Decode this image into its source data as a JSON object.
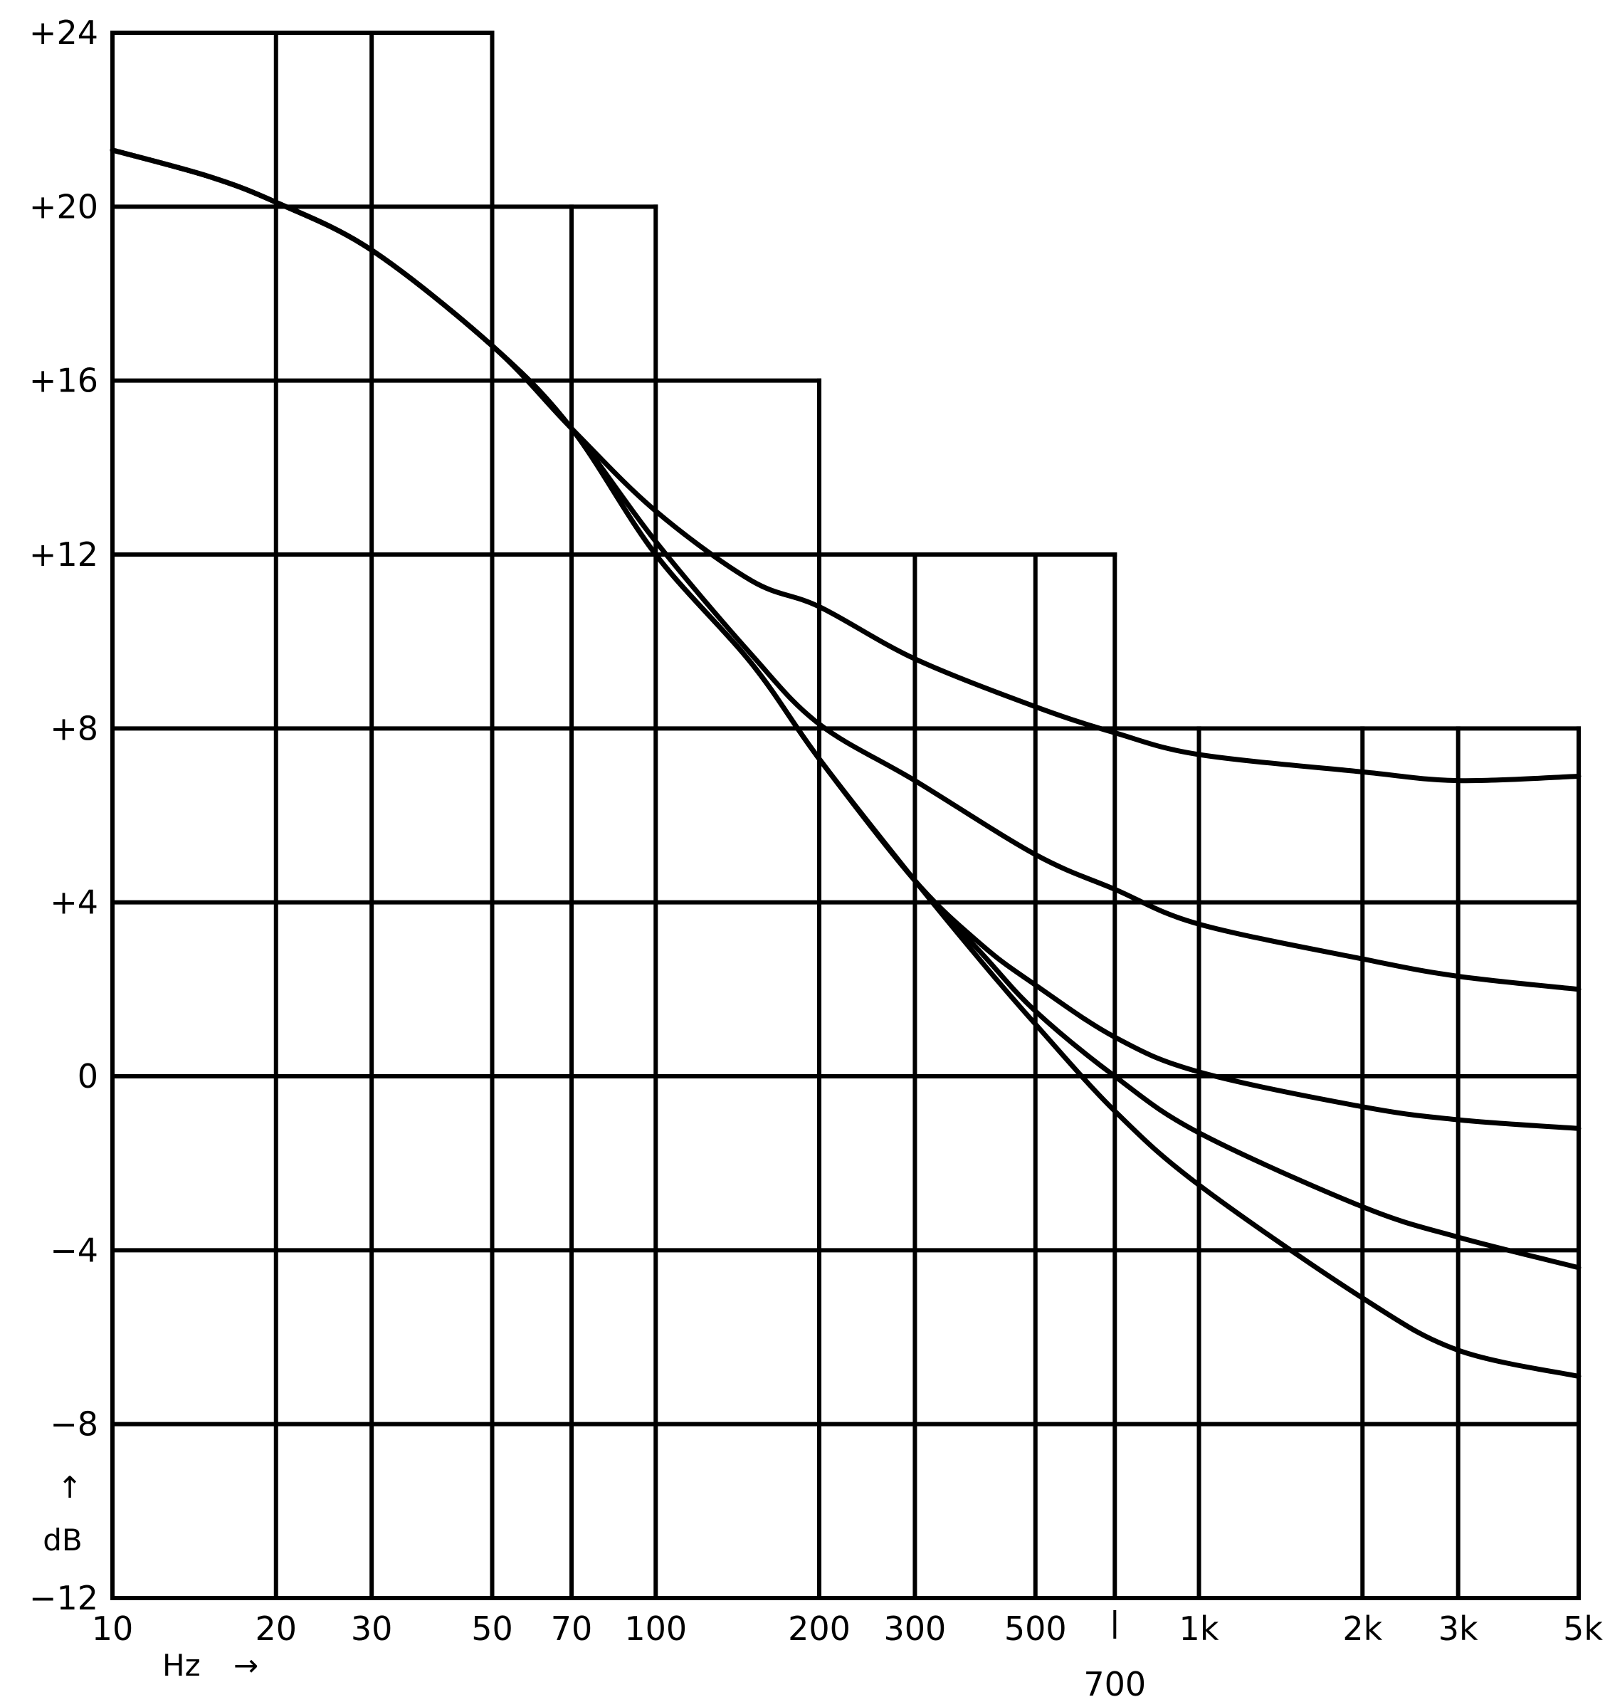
{
  "chart_data": {
    "type": "line",
    "xscale": "log",
    "xlim": [
      10,
      5000
    ],
    "ylim": [
      -12,
      24
    ],
    "xlabel": "Hz",
    "xlabel_arrow": "→",
    "ylabel": "dB",
    "ylabel_arrow": "↑",
    "y_ticks": [
      {
        "value": 24,
        "label": "+24"
      },
      {
        "value": 20,
        "label": "+20"
      },
      {
        "value": 16,
        "label": "+16"
      },
      {
        "value": 12,
        "label": "+12"
      },
      {
        "value": 8,
        "label": "+8"
      },
      {
        "value": 4,
        "label": "+4"
      },
      {
        "value": 0,
        "label": "0"
      },
      {
        "value": -4,
        "label": "−4"
      },
      {
        "value": -8,
        "label": "−8"
      },
      {
        "value": -12,
        "label": "−12"
      }
    ],
    "x_ticks": [
      {
        "value": 10,
        "label": "10"
      },
      {
        "value": 20,
        "label": "20"
      },
      {
        "value": 30,
        "label": "30"
      },
      {
        "value": 50,
        "label": "50"
      },
      {
        "value": 70,
        "label": "70"
      },
      {
        "value": 100,
        "label": "100"
      },
      {
        "value": 200,
        "label": "200"
      },
      {
        "value": 300,
        "label": "300"
      },
      {
        "value": 500,
        "label": "500"
      },
      {
        "value": 700,
        "label": "700"
      },
      {
        "value": 1000,
        "label": "1k"
      },
      {
        "value": 2000,
        "label": "2k"
      },
      {
        "value": 3000,
        "label": "3k"
      },
      {
        "value": 5000,
        "label": "5k"
      }
    ],
    "grid": {
      "verticals": [
        {
          "x": 10,
          "top": 24
        },
        {
          "x": 20,
          "top": 24
        },
        {
          "x": 30,
          "top": 24
        },
        {
          "x": 50,
          "top": 24
        },
        {
          "x": 70,
          "top": 20
        },
        {
          "x": 100,
          "top": 20
        },
        {
          "x": 200,
          "top": 16
        },
        {
          "x": 300,
          "top": 12
        },
        {
          "x": 500,
          "top": 12
        },
        {
          "x": 700,
          "top": 12
        },
        {
          "x": 1000,
          "top": 8
        },
        {
          "x": 2000,
          "top": 8
        },
        {
          "x": 3000,
          "top": 8
        },
        {
          "x": 5000,
          "top": 8
        }
      ],
      "horizontals": [
        {
          "y": 24,
          "right": 50
        },
        {
          "y": 20,
          "right": 100
        },
        {
          "y": 16,
          "right": 200
        },
        {
          "y": 12,
          "right": 700
        },
        {
          "y": 8,
          "right": 5000
        },
        {
          "y": 4,
          "right": 5000
        },
        {
          "y": 0,
          "right": 5000
        },
        {
          "y": -4,
          "right": 5000
        },
        {
          "y": -8,
          "right": 5000
        },
        {
          "y": -12,
          "right": 5000
        }
      ]
    },
    "series": [
      {
        "x": [
          10,
          15,
          20,
          30,
          50,
          70,
          100,
          150,
          200,
          300,
          500,
          700,
          1000,
          2000,
          3000,
          5000
        ],
        "y": [
          21.3,
          20.7,
          20.1,
          19.0,
          16.8,
          14.9,
          13.0,
          11.4,
          10.8,
          9.6,
          8.5,
          7.9,
          7.4,
          7.0,
          6.8,
          6.9
        ]
      },
      {
        "x": [
          10,
          15,
          20,
          30,
          50,
          70,
          100,
          150,
          200,
          300,
          500,
          700,
          1000,
          2000,
          3000,
          5000
        ],
        "y": [
          21.3,
          20.7,
          20.1,
          19.0,
          16.8,
          14.9,
          12.3,
          9.7,
          8.1,
          6.8,
          5.1,
          4.3,
          3.5,
          2.7,
          2.3,
          2.0
        ]
      },
      {
        "x": [
          10,
          15,
          20,
          30,
          50,
          70,
          100,
          150,
          200,
          300,
          400,
          500,
          700,
          1000,
          2000,
          3000,
          5000
        ],
        "y": [
          21.3,
          20.7,
          20.1,
          19.0,
          16.8,
          14.9,
          12.0,
          9.5,
          7.3,
          4.5,
          3.0,
          2.1,
          0.9,
          0.1,
          -0.7,
          -1.0,
          -1.2
        ]
      },
      {
        "x": [
          10,
          15,
          20,
          30,
          50,
          70,
          100,
          150,
          200,
          300,
          400,
          500,
          700,
          1000,
          2000,
          3000,
          5000
        ],
        "y": [
          21.3,
          20.7,
          20.1,
          19.0,
          16.8,
          14.9,
          12.0,
          9.5,
          7.3,
          4.5,
          2.8,
          1.5,
          0.0,
          -1.3,
          -3.0,
          -3.7,
          -4.4
        ]
      },
      {
        "x": [
          10,
          15,
          20,
          30,
          50,
          70,
          100,
          150,
          200,
          300,
          400,
          500,
          700,
          1000,
          2000,
          3000,
          5000
        ],
        "y": [
          21.3,
          20.7,
          20.1,
          19.0,
          16.8,
          14.9,
          12.0,
          9.5,
          7.3,
          4.5,
          2.6,
          1.2,
          -0.8,
          -2.5,
          -5.1,
          -6.3,
          -6.9
        ]
      }
    ]
  }
}
